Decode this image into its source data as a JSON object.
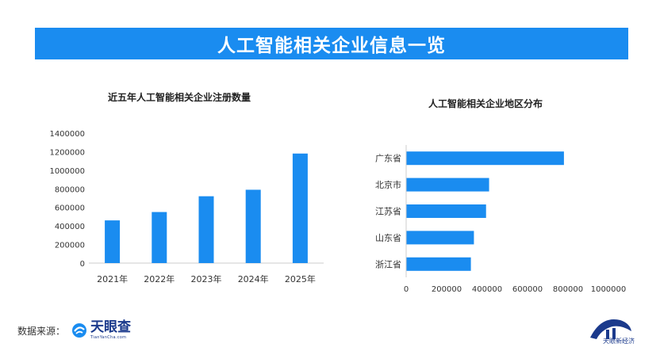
{
  "banner": {
    "title": "人工智能相关企业信息一览"
  },
  "colors": {
    "accent": "#1a8cf0",
    "banner": "#1a8cf0",
    "text": "#333333",
    "axis": "#cccccc"
  },
  "chart_data": [
    {
      "type": "bar",
      "title": "近五年人工智能相关企业注册数量",
      "categories": [
        "2021年",
        "2022年",
        "2023年",
        "2024年",
        "2025年"
      ],
      "values": [
        460000,
        550000,
        720000,
        790000,
        1180000
      ],
      "ylim": [
        0,
        1400000
      ],
      "yticks": [
        "0",
        "200000",
        "400000",
        "600000",
        "800000",
        "1000000",
        "1200000",
        "1400000"
      ],
      "xlabel": "",
      "ylabel": "",
      "grid": false
    },
    {
      "type": "bar",
      "orientation": "horizontal",
      "title": "人工智能相关企业地区分布",
      "categories": [
        "广东省",
        "北京市",
        "江苏省",
        "山东省",
        "浙江省"
      ],
      "values": [
        780000,
        410000,
        395000,
        335000,
        320000
      ],
      "xlim": [
        0,
        1000000
      ],
      "xticks": [
        "0",
        "200000",
        "400000",
        "600000",
        "800000",
        "1000000"
      ],
      "xlabel": "",
      "ylabel": "",
      "grid": false
    }
  ],
  "footer": {
    "source_label": "数据来源：",
    "brand_name": "天眼查",
    "brand_domain": "TianYanCha.com",
    "watermark_text": "天眼新经济"
  }
}
